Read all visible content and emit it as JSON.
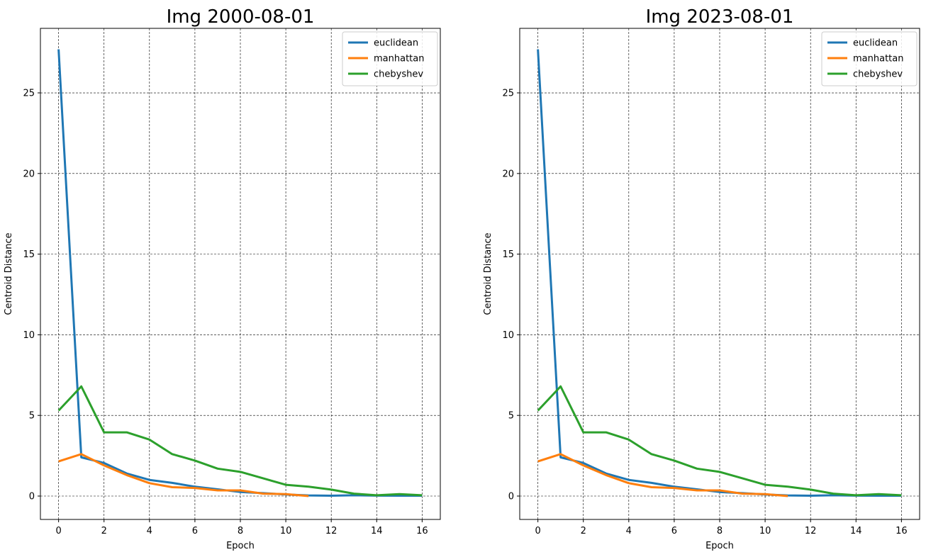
{
  "chart_data": [
    {
      "type": "line",
      "title": "Img 2000-08-01",
      "xlabel": "Epoch",
      "ylabel": "Centroid Distance",
      "xlim": [
        -0.8,
        16.8
      ],
      "ylim": [
        -1.45,
        29.0
      ],
      "xticks": [
        0,
        2,
        4,
        6,
        8,
        10,
        12,
        14,
        16
      ],
      "yticks": [
        0,
        5,
        10,
        15,
        20,
        25
      ],
      "grid": true,
      "legend_position": "top-right",
      "series": [
        {
          "name": "euclidean",
          "color": "#1f77b4",
          "x": [
            0,
            1,
            2,
            3,
            4,
            5,
            6,
            7,
            8,
            9,
            10,
            11,
            12,
            13,
            14,
            15,
            16
          ],
          "y": [
            27.7,
            2.4,
            2.05,
            1.4,
            1.0,
            0.82,
            0.58,
            0.42,
            0.25,
            0.18,
            0.1,
            0.04,
            0.02,
            0.05,
            0.03,
            0.02,
            0.02
          ]
        },
        {
          "name": "manhattan",
          "color": "#ff7f0e",
          "x": [
            0,
            1,
            2,
            3,
            4,
            5,
            6,
            7,
            8,
            9,
            10,
            11
          ],
          "y": [
            2.15,
            2.6,
            1.9,
            1.3,
            0.8,
            0.55,
            0.5,
            0.35,
            0.35,
            0.15,
            0.12,
            0.0
          ]
        },
        {
          "name": "chebyshev",
          "color": "#2ca02c",
          "x": [
            0,
            1,
            2,
            3,
            4,
            5,
            6,
            7,
            8,
            9,
            10,
            11,
            12,
            13,
            14,
            15,
            16
          ],
          "y": [
            5.3,
            6.8,
            3.95,
            3.95,
            3.5,
            2.6,
            2.2,
            1.7,
            1.5,
            1.1,
            0.7,
            0.58,
            0.4,
            0.15,
            0.05,
            0.12,
            0.05
          ]
        }
      ]
    },
    {
      "type": "line",
      "title": "Img 2023-08-01",
      "xlabel": "Epoch",
      "ylabel": "Centroid Distance",
      "xlim": [
        -0.8,
        16.8
      ],
      "ylim": [
        -1.45,
        29.0
      ],
      "xticks": [
        0,
        2,
        4,
        6,
        8,
        10,
        12,
        14,
        16
      ],
      "yticks": [
        0,
        5,
        10,
        15,
        20,
        25
      ],
      "grid": true,
      "legend_position": "top-right",
      "series": [
        {
          "name": "euclidean",
          "color": "#1f77b4",
          "x": [
            0,
            1,
            2,
            3,
            4,
            5,
            6,
            7,
            8,
            9,
            10,
            11,
            12,
            13,
            14,
            15,
            16
          ],
          "y": [
            27.7,
            2.4,
            2.05,
            1.4,
            1.0,
            0.82,
            0.58,
            0.42,
            0.25,
            0.18,
            0.1,
            0.04,
            0.02,
            0.05,
            0.03,
            0.02,
            0.02
          ]
        },
        {
          "name": "manhattan",
          "color": "#ff7f0e",
          "x": [
            0,
            1,
            2,
            3,
            4,
            5,
            6,
            7,
            8,
            9,
            10,
            11
          ],
          "y": [
            2.15,
            2.6,
            1.9,
            1.3,
            0.8,
            0.55,
            0.5,
            0.35,
            0.35,
            0.15,
            0.12,
            0.0
          ]
        },
        {
          "name": "chebyshev",
          "color": "#2ca02c",
          "x": [
            0,
            1,
            2,
            3,
            4,
            5,
            6,
            7,
            8,
            9,
            10,
            11,
            12,
            13,
            14,
            15,
            16
          ],
          "y": [
            5.3,
            6.8,
            3.95,
            3.95,
            3.5,
            2.6,
            2.2,
            1.7,
            1.5,
            1.1,
            0.7,
            0.58,
            0.4,
            0.15,
            0.05,
            0.12,
            0.05
          ]
        }
      ]
    }
  ]
}
